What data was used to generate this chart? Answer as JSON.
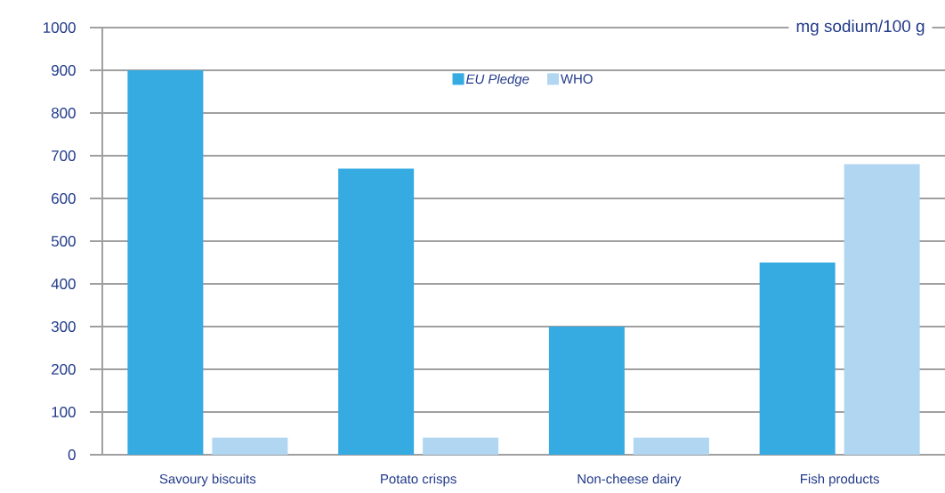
{
  "chart_data": {
    "type": "bar",
    "ylabel": "mg sodium/100 g",
    "categories": [
      "Savoury biscuits",
      "Potato crisps",
      "Non-cheese dairy",
      "Fish products"
    ],
    "series": [
      {
        "name": "EU Pledge",
        "color": "#35abe2",
        "values": [
          900,
          670,
          300,
          450
        ]
      },
      {
        "name": "WHO",
        "color": "#b0d6f2",
        "values": [
          40,
          40,
          40,
          680
        ]
      }
    ],
    "ylim": [
      0,
      1000
    ],
    "yticks": [
      0,
      100,
      200,
      300,
      400,
      500,
      600,
      700,
      800,
      900,
      1000
    ],
    "grid": "y",
    "legend": "top"
  }
}
